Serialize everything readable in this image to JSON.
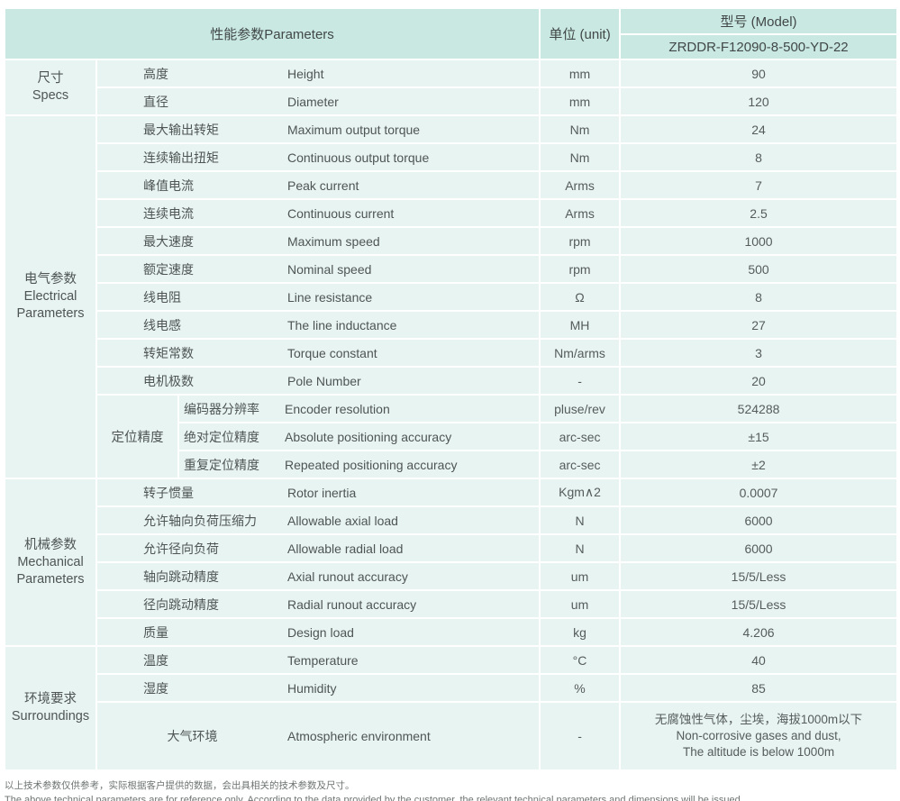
{
  "colors": {
    "header_bg": "#c9e8e2",
    "row_bg": "#e7f4f2",
    "text": "#4f5554",
    "footnote_text": "#6e7473"
  },
  "header": {
    "parameters_label": "性能参数Parameters",
    "unit_label": "单位 (unit)",
    "model_label": "型号 (Model)",
    "model_value": "ZRDDR-F12090-8-500-YD-22"
  },
  "specs": {
    "label_zh": "尺寸",
    "label_en": "Specs",
    "rows": [
      {
        "zh": "高度",
        "en": "Height",
        "unit": "mm",
        "value": "90"
      },
      {
        "zh": "直径",
        "en": "Diameter",
        "unit": "mm",
        "value": "120"
      }
    ]
  },
  "electrical": {
    "label_zh": "电气参数",
    "label_en": "Electrical Parameters",
    "rows": [
      {
        "zh": "最大输出转矩",
        "en": "Maximum output torque",
        "unit": "Nm",
        "value": "24"
      },
      {
        "zh": "连续输出扭矩",
        "en": "Continuous output torque",
        "unit": "Nm",
        "value": "8"
      },
      {
        "zh": "峰值电流",
        "en": "Peak current",
        "unit": "Arms",
        "value": "7"
      },
      {
        "zh": "连续电流",
        "en": "Continuous current",
        "unit": "Arms",
        "value": "2.5"
      },
      {
        "zh": "最大速度",
        "en": "Maximum speed",
        "unit": "rpm",
        "value": "1000"
      },
      {
        "zh": "额定速度",
        "en": "Nominal speed",
        "unit": "rpm",
        "value": "500"
      },
      {
        "zh": "线电阻",
        "en": "Line resistance",
        "unit": "Ω",
        "value": "8"
      },
      {
        "zh": "线电感",
        "en": "The line inductance",
        "unit": "MH",
        "value": "27"
      },
      {
        "zh": "转矩常数",
        "en": "Torque constant",
        "unit": "Nm/arms",
        "value": "3"
      },
      {
        "zh": "电机极数",
        "en": "Pole Number",
        "unit": "-",
        "value": "20"
      }
    ],
    "positioning": {
      "label": "定位精度",
      "rows": [
        {
          "zh": "编码器分辨率",
          "en": "Encoder resolution",
          "unit": "pluse/rev",
          "value": "524288"
        },
        {
          "zh": "绝对定位精度",
          "en": "Absolute positioning accuracy",
          "unit": "arc-sec",
          "value": "±15"
        },
        {
          "zh": "重复定位精度",
          "en": "Repeated positioning accuracy",
          "unit": "arc-sec",
          "value": "±2"
        }
      ]
    }
  },
  "mechanical": {
    "label_zh": "机械参数",
    "label_en": "Mechanical Parameters",
    "rows": [
      {
        "zh": "转子惯量",
        "en": "Rotor inertia",
        "unit": "Kgm∧2",
        "value": "0.0007"
      },
      {
        "zh": "允许轴向负荷压缩力",
        "en": "Allowable axial load",
        "unit": "N",
        "value": "6000"
      },
      {
        "zh": "允许径向负荷",
        "en": "Allowable radial load",
        "unit": "N",
        "value": "6000"
      },
      {
        "zh": "轴向跳动精度",
        "en": "Axial runout accuracy",
        "unit": "um",
        "value": "15/5/Less"
      },
      {
        "zh": "径向跳动精度",
        "en": "Radial runout accuracy",
        "unit": "um",
        "value": "15/5/Less"
      },
      {
        "zh": "质量",
        "en": "Design load",
        "unit": "kg",
        "value": "4.206"
      }
    ]
  },
  "surroundings": {
    "label_zh": "环境要求",
    "label_en": "Surroundings",
    "rows": [
      {
        "zh": "温度",
        "en": "Temperature",
        "unit": "°C",
        "value": "40"
      },
      {
        "zh": "湿度",
        "en": "Humidity",
        "unit": "%",
        "value": "85"
      }
    ],
    "atmospheric": {
      "zh": "大气环境",
      "en": "Atmospheric environment",
      "unit": "-",
      "value_line1": "无腐蚀性气体，尘埃，海拔1000m以下",
      "value_line2": "Non-corrosive gases and dust,",
      "value_line3": "The altitude is below 1000m"
    }
  },
  "footnotes": {
    "zh": "以上技术参数仅供参考，实际根据客户提供的数据，会出具相关的技术参数及尺寸。",
    "en": "The above technical parameters are for reference only. According to the data provided by the customer, the relevant technical parameters and dimensions will be issued."
  }
}
